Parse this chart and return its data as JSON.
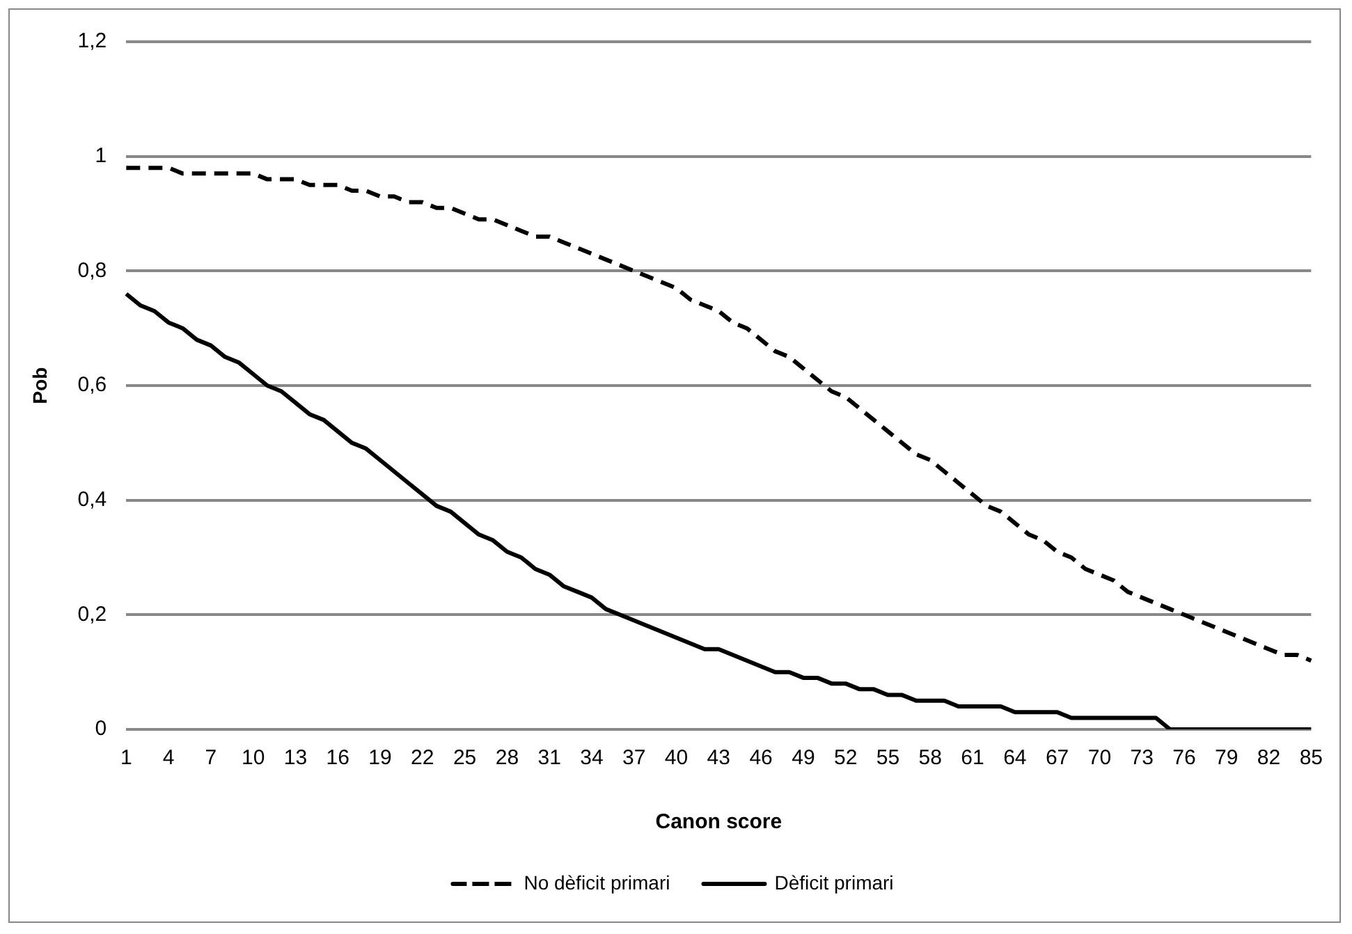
{
  "chart_data": {
    "type": "line",
    "xlabel": "Canon score",
    "ylabel": "Pob",
    "categories": [
      "1",
      null,
      null,
      "4",
      null,
      null,
      "7",
      null,
      null,
      "10",
      null,
      null,
      "13",
      null,
      null,
      "16",
      null,
      null,
      "19",
      null,
      null,
      "22",
      null,
      null,
      "25",
      null,
      null,
      "28",
      null,
      null,
      "31",
      null,
      null,
      "34",
      null,
      null,
      "37",
      null,
      null,
      "40",
      null,
      null,
      "43",
      null,
      null,
      "46",
      null,
      null,
      "49",
      null,
      null,
      "52",
      null,
      null,
      "55",
      null,
      null,
      "58",
      null,
      null,
      "61",
      null,
      null,
      "64",
      null,
      null,
      "67",
      null,
      null,
      "70",
      null,
      null,
      "73",
      null,
      null,
      "76",
      null,
      null,
      "79",
      null,
      null,
      "82",
      null,
      null,
      "85"
    ],
    "series": [
      {
        "name": "No dèficit primari",
        "color": "#000000",
        "line_style": "dashed",
        "values": [
          0.98,
          0.98,
          0.98,
          0.98,
          0.97,
          0.97,
          0.97,
          0.97,
          0.97,
          0.97,
          0.96,
          0.96,
          0.96,
          0.95,
          0.95,
          0.95,
          0.94,
          0.94,
          0.93,
          0.93,
          0.92,
          0.92,
          0.91,
          0.91,
          0.9,
          0.89,
          0.89,
          0.88,
          0.87,
          0.86,
          0.86,
          0.85,
          0.84,
          0.83,
          0.82,
          0.81,
          0.8,
          0.79,
          0.78,
          0.77,
          0.75,
          0.74,
          0.73,
          0.71,
          0.7,
          0.68,
          0.66,
          0.65,
          0.63,
          0.61,
          0.59,
          0.58,
          0.56,
          0.54,
          0.52,
          0.5,
          0.48,
          0.47,
          0.45,
          0.43,
          0.41,
          0.39,
          0.38,
          0.36,
          0.34,
          0.33,
          0.31,
          0.3,
          0.28,
          0.27,
          0.26,
          0.24,
          0.23,
          0.22,
          0.21,
          0.2,
          0.19,
          0.18,
          0.17,
          0.16,
          0.15,
          0.14,
          0.13,
          0.13,
          0.12
        ]
      },
      {
        "name": "Dèficit primari",
        "color": "#000000",
        "line_style": "solid",
        "values": [
          0.76,
          0.74,
          0.73,
          0.71,
          0.7,
          0.68,
          0.67,
          0.65,
          0.64,
          0.62,
          0.6,
          0.59,
          0.57,
          0.55,
          0.54,
          0.52,
          0.5,
          0.49,
          0.47,
          0.45,
          0.43,
          0.41,
          0.39,
          0.38,
          0.36,
          0.34,
          0.33,
          0.31,
          0.3,
          0.28,
          0.27,
          0.25,
          0.24,
          0.23,
          0.21,
          0.2,
          0.19,
          0.18,
          0.17,
          0.16,
          0.15,
          0.14,
          0.14,
          0.13,
          0.12,
          0.11,
          0.1,
          0.1,
          0.09,
          0.09,
          0.08,
          0.08,
          0.07,
          0.07,
          0.06,
          0.06,
          0.05,
          0.05,
          0.05,
          0.04,
          0.04,
          0.04,
          0.04,
          0.03,
          0.03,
          0.03,
          0.03,
          0.02,
          0.02,
          0.02,
          0.02,
          0.02,
          0.02,
          0.02,
          0,
          0,
          0,
          0,
          0,
          0,
          0,
          0,
          0,
          0,
          0
        ]
      }
    ],
    "ylim": [
      0,
      1.2
    ],
    "yticks": [
      0,
      {
        "value": 0.2,
        "label": "0,2"
      },
      {
        "value": 0.4,
        "label": "0,4"
      },
      {
        "value": 0.6,
        "label": "0,6"
      },
      {
        "value": 0.8,
        "label": "0,8"
      },
      1,
      {
        "value": 1.2,
        "label": "1,2"
      }
    ],
    "grid": "y",
    "legend": "bottom",
    "marker": "none"
  }
}
